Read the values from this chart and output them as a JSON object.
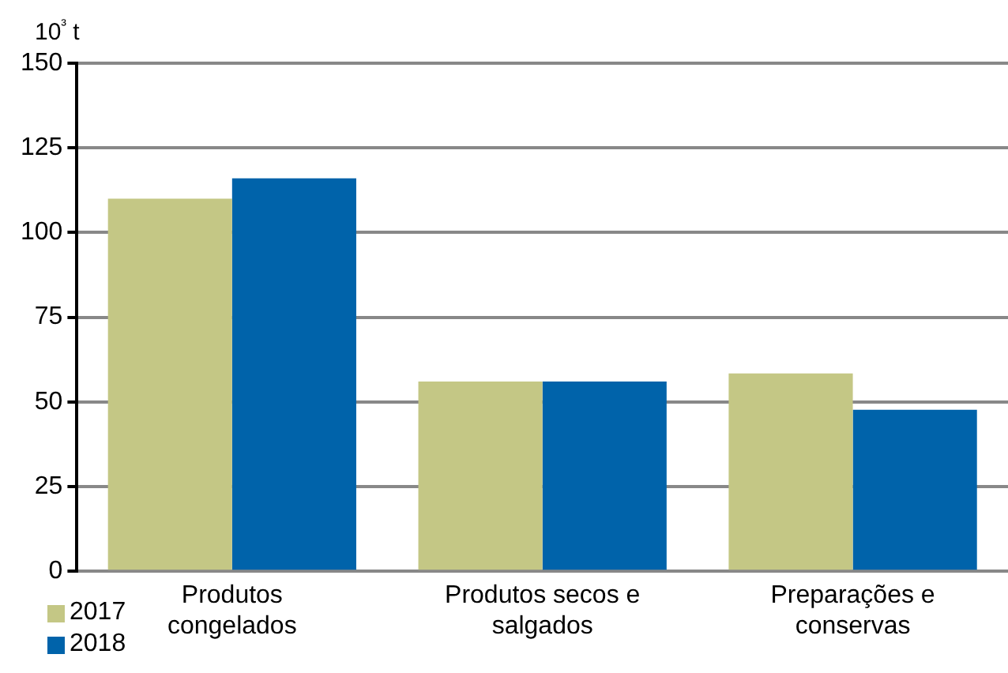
{
  "chart_data": {
    "type": "bar",
    "ylabel": "10³ t",
    "categories": [
      "Produtos congelados",
      "Produtos secos e salgados",
      "Preparações e conservas"
    ],
    "series": [
      {
        "name": "2017",
        "color": "#c4c785",
        "values": [
          110,
          56,
          58.4
        ]
      },
      {
        "name": "2018",
        "color": "#0063aa",
        "values": [
          116,
          56,
          47.7
        ]
      }
    ],
    "ylim": [
      0,
      150
    ],
    "yticks": [
      0,
      25,
      50,
      75,
      100,
      125,
      150
    ],
    "grid": "y",
    "legend": "bottom left"
  }
}
